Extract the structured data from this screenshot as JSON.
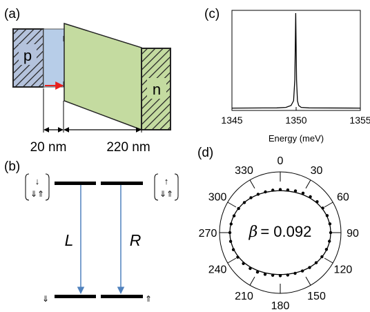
{
  "panel_a": {
    "label": "(a)",
    "p_label": "p",
    "n_label": "n",
    "dim_left": "20 nm",
    "dim_right": "220 nm",
    "colors": {
      "p_fill": "#b4c2dc",
      "well_fill": "#b7cde8",
      "barrier_fill": "#c4dba0",
      "n_fill": "#c4dba0",
      "arrow": "#e8201c"
    }
  },
  "panel_b": {
    "label": "(b)",
    "left_state_top": "↓",
    "left_state_bottom": "⇓⇑",
    "right_state_top": "↑",
    "right_state_bottom": "⇓⇑",
    "bottom_left": "⇓",
    "bottom_right": "⇑",
    "transition_left": "L",
    "transition_right": "R",
    "colors": {
      "arrow": "#4f81bd"
    }
  },
  "panel_c": {
    "label": "(c)",
    "xlabel": "Energy (meV)",
    "tick_labels": [
      "1345",
      "1350",
      "1355"
    ]
  },
  "panel_d": {
    "label": "(d)",
    "annotation_symbol": "β",
    "annotation_value": "= 0.092",
    "angle_labels": [
      "0",
      "30",
      "60",
      "90",
      "120",
      "150",
      "180",
      "210",
      "240",
      "270",
      "300",
      "330"
    ]
  },
  "chart_data": [
    {
      "type": "line",
      "panel": "(c)",
      "xlabel": "Energy (meV)",
      "ylabel": "",
      "xlim": [
        1345,
        1355
      ],
      "xticks": [
        1345,
        1350,
        1355
      ],
      "series": [
        {
          "x": [
            1345,
            1348.5,
            1349.2,
            1349.6,
            1349.8,
            1349.9,
            1349.97,
            1350.03,
            1350.1,
            1350.2,
            1350.4,
            1351,
            1355
          ],
          "y": [
            0.003,
            0.005,
            0.01,
            0.03,
            0.08,
            0.3,
            1.0,
            0.3,
            0.08,
            0.03,
            0.01,
            0.005,
            0.003
          ]
        }
      ]
    },
    {
      "type": "scatter",
      "panel": "(d)",
      "subtype": "polar",
      "theta_deg": [
        0,
        10,
        20,
        30,
        40,
        50,
        60,
        70,
        80,
        90,
        100,
        110,
        120,
        130,
        140,
        150,
        160,
        170,
        180,
        190,
        200,
        210,
        220,
        230,
        240,
        250,
        260,
        270,
        280,
        290,
        300,
        310,
        320,
        330,
        340,
        350
      ],
      "r": [
        0.855,
        0.86,
        0.88,
        0.905,
        0.93,
        0.955,
        0.975,
        0.99,
        1.0,
        1.0,
        0.99,
        0.975,
        0.955,
        0.93,
        0.905,
        0.88,
        0.86,
        0.855,
        0.855,
        0.86,
        0.88,
        0.905,
        0.93,
        0.955,
        0.975,
        0.99,
        1.0,
        1.0,
        0.99,
        0.975,
        0.955,
        0.93,
        0.905,
        0.88,
        0.86,
        0.855
      ],
      "beta": 0.092
    }
  ]
}
